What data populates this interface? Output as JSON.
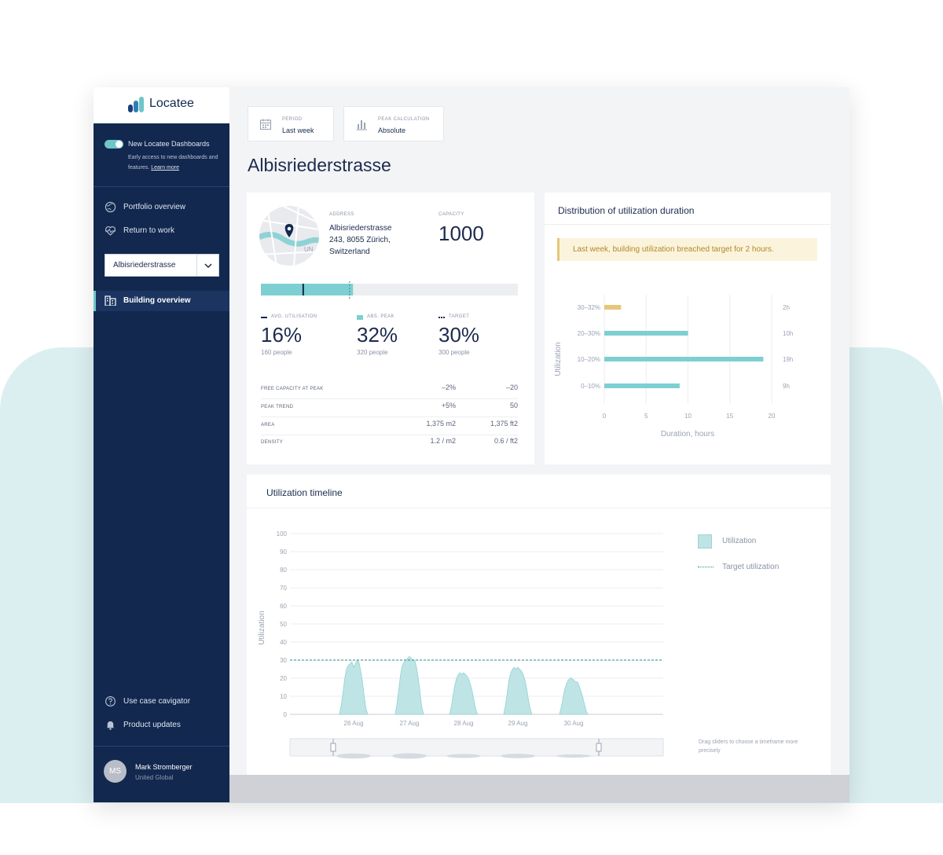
{
  "brand": {
    "name": "Locatee"
  },
  "colors": {
    "sidebar": "#12284f",
    "accent": "#6ec6c9",
    "highlight": "#e6c77a"
  },
  "sidebar": {
    "toggle_title": "New Locatee Dashboards",
    "toggle_desc": "Early access to new dashboards and features.",
    "learn_more": "Learn more",
    "nav": [
      {
        "label": "Portfolio overview",
        "icon": "globe-icon"
      },
      {
        "label": "Return to work",
        "icon": "heartbeat-icon"
      }
    ],
    "building_select": "Albisriederstrasse",
    "active_item": {
      "label": "Building overview",
      "icon": "building-icon"
    },
    "bottom_nav": [
      {
        "label": "Use case cavigator",
        "icon": "help-icon"
      },
      {
        "label": "Product updates",
        "icon": "bell-icon"
      }
    ],
    "user": {
      "initials": "MS",
      "name": "Mark Stromberger",
      "org": "United Global"
    }
  },
  "filters": [
    {
      "label": "PERIOD",
      "value": "Last week",
      "icon": "calendar-icon"
    },
    {
      "label": "PEAK CALCULATION",
      "value": "Absolute",
      "icon": "bar-chart-icon"
    }
  ],
  "page_title": "Albisriederstrasse",
  "building": {
    "address_label": "ADDRESS",
    "address_line1": "Albisriederstrasse",
    "address_line2": "243, 8055 Zürich,",
    "address_line3": "Switzerland",
    "capacity_label": "CAPACITY",
    "capacity_value": "1000",
    "utilisation_bar": {
      "avg": 0.16,
      "peak": 0.32,
      "target": 0.3
    },
    "kpis": [
      {
        "label": "AVG. UTILISATION",
        "value": "16%",
        "sub": "160 people"
      },
      {
        "label": "ABS. PEAK",
        "value": "32%",
        "sub": "320 people"
      },
      {
        "label": "TARGET",
        "value": "30%",
        "sub": "300 people"
      }
    ],
    "stats": [
      {
        "label": "FREE CAPACITY AT PEAK",
        "a": "–2%",
        "b": "–20"
      },
      {
        "label": "PEAK TREND",
        "a": "+5%",
        "b": "50"
      },
      {
        "label": "AREA",
        "a": "1,375 m2",
        "b": "1,375 ft2"
      },
      {
        "label": "DENSITY",
        "a": "1.2 / m2",
        "b": "0.6 / ft2"
      }
    ]
  },
  "distribution": {
    "title": "Distribution of utilization duration",
    "alert": "Last week, building utilization breached target for 2 hours.",
    "ylabel": "Utilization",
    "xlabel": "Duration, hours",
    "duration_labels": [
      "2h",
      "10h",
      "19h",
      "9h"
    ]
  },
  "timeline": {
    "title": "Utilization timeline",
    "ylabel": "Utilization",
    "legend_utilization": "Utilization",
    "legend_target": "Target utilization",
    "slider_hint": "Drag sliders to choose a timeframe more precisely"
  },
  "chart_data": [
    {
      "type": "bar",
      "orientation": "horizontal",
      "title": "Distribution of utilization duration",
      "categories": [
        "30–32%",
        "20–30%",
        "10–20%",
        "0–10%"
      ],
      "values": [
        2,
        10,
        19,
        9
      ],
      "xlabel": "Duration, hours",
      "ylabel": "Utilization",
      "xlim": [
        0,
        20
      ],
      "xticks": [
        0,
        5,
        10,
        15,
        20
      ],
      "highlight_color": "#e6c77a",
      "bar_color": "#7ecfd1"
    },
    {
      "type": "area",
      "title": "Utilization timeline",
      "ylabel": "Utilization",
      "ylim": [
        0,
        100
      ],
      "yticks": [
        0,
        10,
        20,
        30,
        40,
        50,
        60,
        70,
        80,
        90,
        100
      ],
      "target": 30,
      "x_labels": [
        "26 Aug",
        "27 Aug",
        "28 Aug",
        "29 Aug",
        "30 Aug"
      ],
      "series": [
        {
          "name": "Utilization",
          "days": [
            [
              0,
              5,
              12,
              20,
              25,
              27,
              28,
              29,
              26,
              28,
              30,
              29,
              24,
              18,
              10,
              3,
              0
            ],
            [
              0,
              6,
              14,
              22,
              27,
              29,
              30,
              31,
              32,
              31,
              30,
              30,
              26,
              20,
              12,
              4,
              0
            ],
            [
              0,
              4,
              10,
              16,
              20,
              22,
              23,
              22,
              23,
              22,
              21,
              19,
              16,
              12,
              7,
              2,
              0
            ],
            [
              0,
              5,
              12,
              19,
              23,
              25,
              26,
              25,
              26,
              25,
              24,
              22,
              19,
              14,
              8,
              3,
              0
            ],
            [
              0,
              4,
              9,
              14,
              17,
              19,
              20,
              20,
              19,
              18,
              18,
              16,
              13,
              10,
              6,
              2,
              0
            ]
          ]
        }
      ]
    }
  ]
}
